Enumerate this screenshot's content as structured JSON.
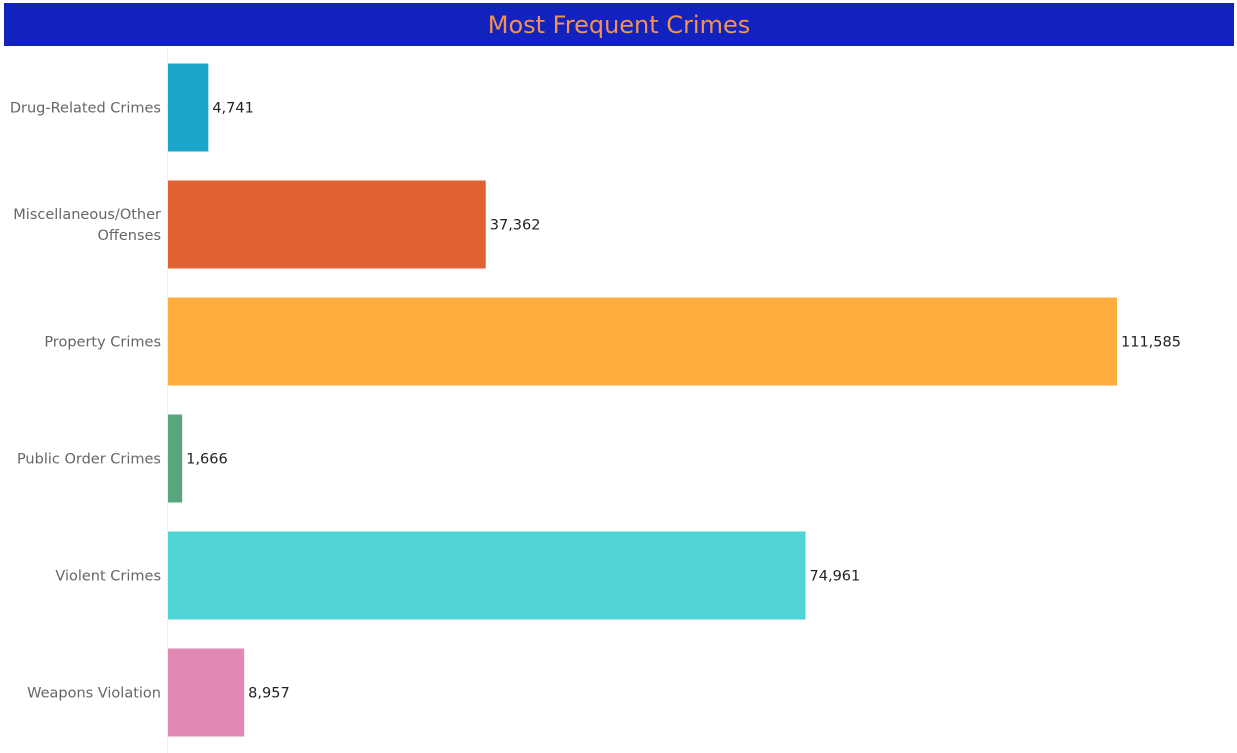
{
  "colors": {
    "title_background": "#1222bf",
    "title_text": "#f4914e",
    "axis_line": "#eeeeee"
  },
  "chart_data": {
    "type": "bar",
    "orientation": "horizontal",
    "title": "Most Frequent Crimes",
    "xlabel": "",
    "ylabel": "",
    "grid": false,
    "legend": "none",
    "categories": [
      [
        "Drug-Related Crimes"
      ],
      [
        "Miscellaneous/Other",
        "Offenses"
      ],
      [
        "Property Crimes"
      ],
      [
        "Public Order Crimes"
      ],
      [
        "Violent Crimes"
      ],
      [
        "Weapons Violation"
      ]
    ],
    "values": [
      4741,
      37362,
      111585,
      1666,
      74961,
      8957
    ],
    "value_labels": [
      "4,741",
      "37,362",
      "111,585",
      "1,666",
      "74,961",
      "8,957"
    ],
    "colors": [
      "#1ca4c9",
      "#e06232",
      "#ffae3d",
      "#58a77c",
      "#4fd3d4",
      "#e288b5"
    ],
    "xlim": [
      0,
      111585
    ]
  }
}
